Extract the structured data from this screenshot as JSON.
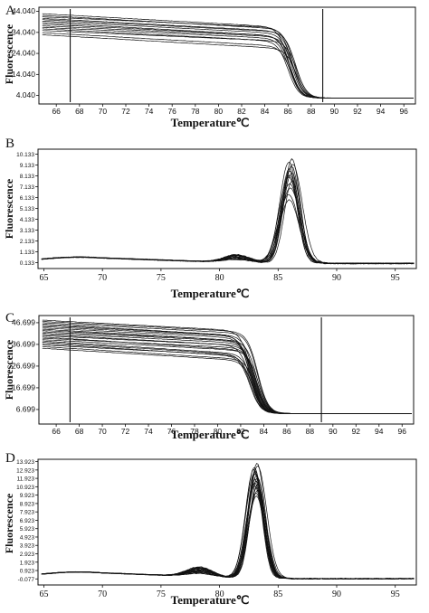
{
  "chart_data": [
    {
      "panel": "A",
      "type": "line",
      "xlabel": "Temperature℃",
      "ylabel": "Fluorescence",
      "xlim": [
        64.5,
        97
      ],
      "ylim": [
        0,
        46
      ],
      "xticks": [
        66,
        68,
        70,
        72,
        74,
        76,
        78,
        80,
        82,
        84,
        86,
        88,
        90,
        92,
        94,
        96
      ],
      "yticks": [
        4.04,
        14.04,
        24.04,
        34.04,
        44.04
      ],
      "ytick_labels": [
        "4.040",
        "14.040",
        "24.040",
        "34.040",
        "44.040"
      ],
      "vlines": [
        67.2,
        89.0
      ],
      "curve_kind": "melt",
      "n_curves": 14,
      "start_y": [
        33.0,
        34.0,
        35.0,
        35.8,
        36.5,
        37.2,
        38.0,
        38.8,
        39.5,
        40.2,
        40.8,
        41.5,
        42.2,
        43.0
      ],
      "end_y": 2.8,
      "slope": 0.28,
      "transition_mid": 86.4,
      "transition_width": 0.45
    },
    {
      "panel": "B",
      "type": "line",
      "xlabel": "Temperature℃",
      "ylabel": "Fluorescence",
      "xlim": [
        64.5,
        96.8
      ],
      "ylim": [
        -0.4,
        10.6
      ],
      "xticks": [
        65,
        70,
        75,
        80,
        85,
        90,
        95
      ],
      "tick_style": "big",
      "yticks": [
        0.133,
        1.133,
        2.133,
        3.133,
        4.133,
        5.133,
        6.133,
        7.133,
        8.133,
        9.133,
        10.133
      ],
      "ytick_labels": [
        "0.133",
        "1.133",
        "2.133",
        "3.133",
        "4.133",
        "5.133",
        "6.133",
        "7.133",
        "8.133",
        "9.133",
        "10.133"
      ],
      "vlines": [],
      "curve_kind": "peak",
      "n_curves": 14,
      "peak_center": 86.1,
      "peak_width": 1.05,
      "peak_heights": [
        5.8,
        6.3,
        6.9,
        7.3,
        7.6,
        7.9,
        8.1,
        8.3,
        8.5,
        8.7,
        8.9,
        9.1,
        9.3,
        9.6
      ],
      "shoulder_center": 81.5,
      "shoulder_height": 0.7,
      "baseline_y": 0.12,
      "hump_y": 0.65,
      "hump_center": 68.0
    },
    {
      "panel": "C",
      "type": "line",
      "xlabel": "Temperature℃",
      "ylabel": "Fluorescence",
      "xlim": [
        64.5,
        97
      ],
      "ylim": [
        0,
        50
      ],
      "xticks": [
        66,
        68,
        70,
        72,
        74,
        76,
        78,
        80,
        82,
        84,
        86,
        88,
        90,
        92,
        94,
        96
      ],
      "yticks": [
        6.699,
        16.699,
        26.699,
        36.699,
        46.699
      ],
      "ytick_labels": [
        "6.699",
        "16.699",
        "26.699",
        "36.699",
        "46.699"
      ],
      "vlines": [
        67.2,
        89.0
      ],
      "curve_kind": "melt",
      "n_curves": 22,
      "start_y": [
        35.0,
        35.8,
        36.5,
        37.2,
        37.8,
        38.4,
        39.0,
        39.6,
        40.2,
        40.8,
        41.4,
        42.0,
        42.6,
        43.2,
        43.8,
        44.4,
        45.0,
        45.6,
        46.2,
        46.8,
        47.4,
        48.0
      ],
      "end_y": 4.8,
      "slope": 0.3,
      "transition_mid": 83.2,
      "transition_width": 0.45
    },
    {
      "panel": "D",
      "type": "line",
      "xlabel": "Temperature℃",
      "ylabel": "Fluorescence",
      "xlim": [
        64.5,
        96.8
      ],
      "ylim": [
        -0.8,
        14.2
      ],
      "xticks": [
        65,
        70,
        75,
        80,
        85,
        90,
        95
      ],
      "tick_style": "big",
      "yticks": [
        -0.077,
        0.923,
        1.923,
        2.923,
        3.923,
        4.923,
        5.923,
        6.923,
        7.923,
        8.923,
        9.923,
        10.923,
        11.923,
        12.923,
        13.923
      ],
      "ytick_labels": [
        "-0.077",
        "0.923",
        "1.923",
        "2.923",
        "3.923",
        "4.923",
        "5.923",
        "6.923",
        "7.923",
        "8.923",
        "9.923",
        "10.923",
        "11.923",
        "12.923",
        "13.923"
      ],
      "vlines": [],
      "curve_kind": "peak",
      "n_curves": 18,
      "peak_center": 83.1,
      "peak_width": 0.95,
      "peak_heights": [
        9.8,
        10.2,
        10.5,
        10.8,
        11.0,
        11.2,
        11.4,
        11.6,
        11.8,
        12.0,
        12.2,
        12.4,
        12.6,
        12.8,
        13.0,
        13.2,
        13.4,
        13.7
      ],
      "shoulder_center": 78.3,
      "shoulder_height": 0.9,
      "baseline_y": 0.0,
      "hump_y": 0.75,
      "hump_center": 68.0
    }
  ]
}
